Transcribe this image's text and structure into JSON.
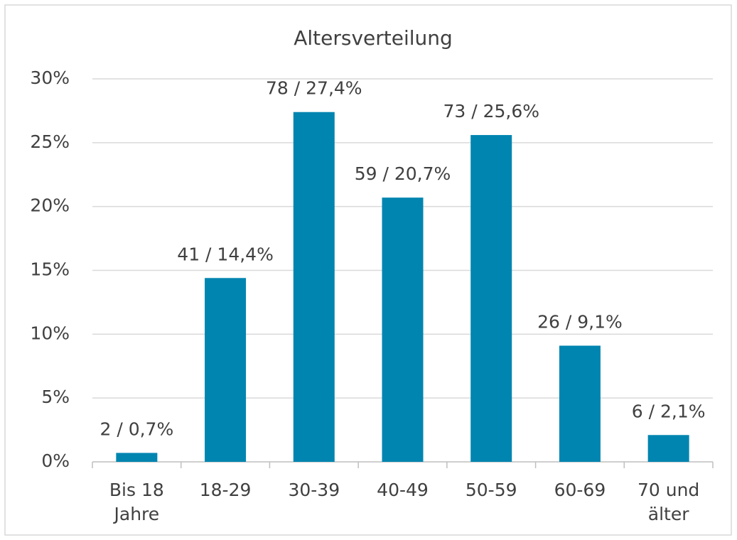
{
  "chart_data": {
    "type": "bar",
    "title": "Altersverteilung",
    "categories": [
      "Bis 18 Jahre",
      "18-29",
      "30-39",
      "40-49",
      "50-59",
      "60-69",
      "70 und älter"
    ],
    "values": [
      0.7,
      14.4,
      27.4,
      20.7,
      25.6,
      9.1,
      2.1
    ],
    "value_labels": [
      "2 / 0,7%",
      "41 / 14,4%",
      "78 / 27,4%",
      "59 / 20,7%",
      "73 / 25,6%",
      "26 / 9,1%",
      "6 / 2,1%"
    ],
    "color": "#0085b0",
    "ylim": [
      0,
      30
    ],
    "yticks": [
      {
        "value": 0,
        "label": "0%"
      },
      {
        "value": 5,
        "label": "5%"
      },
      {
        "value": 10,
        "label": "10%"
      },
      {
        "value": 15,
        "label": "15%"
      },
      {
        "value": 20,
        "label": "20%"
      },
      {
        "value": 25,
        "label": "25%"
      },
      {
        "value": 30,
        "label": "30%"
      }
    ],
    "grid": true
  }
}
